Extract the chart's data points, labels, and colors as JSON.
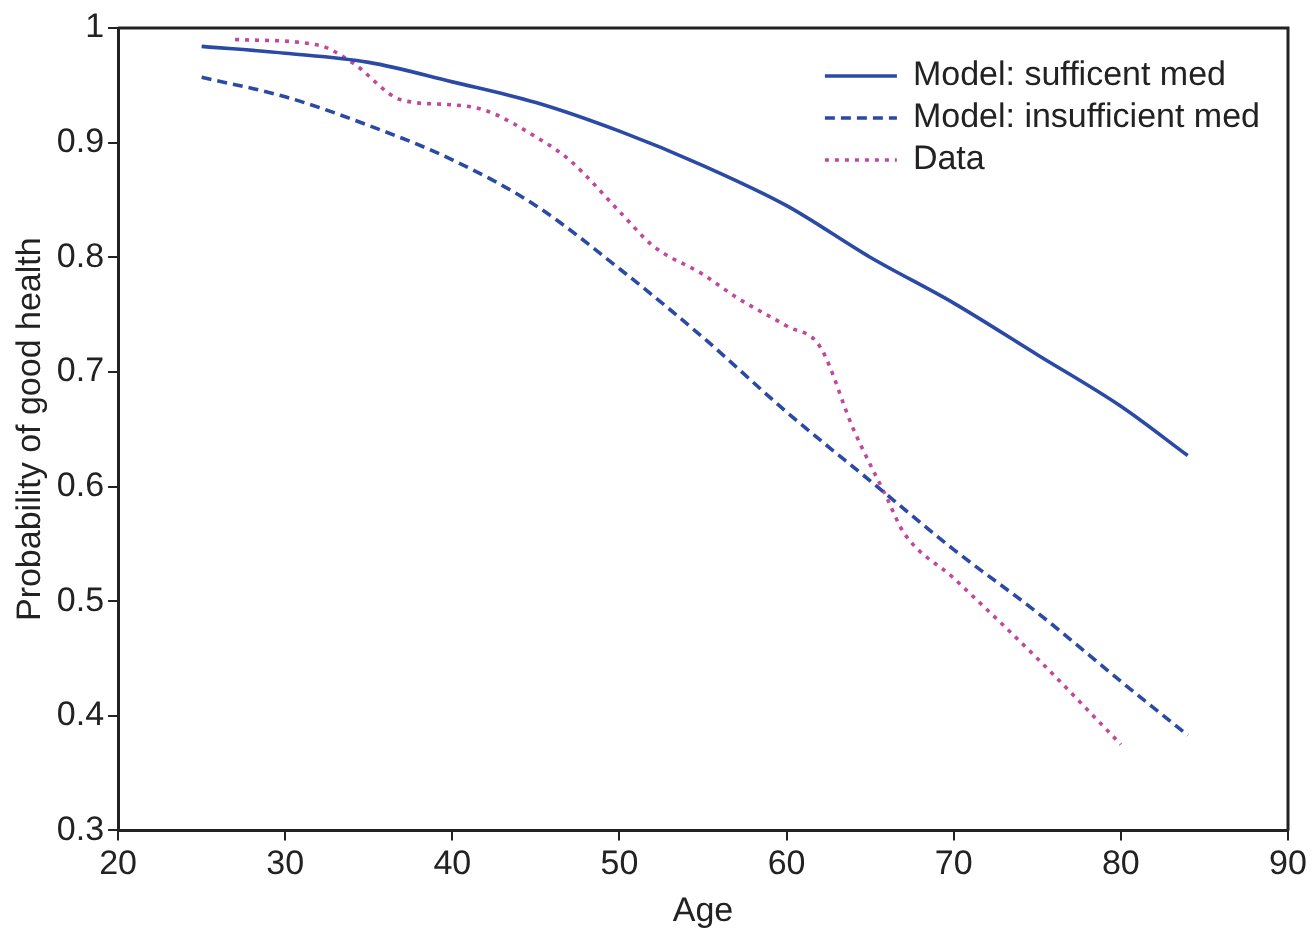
{
  "chart_data": {
    "type": "line",
    "xlabel": "Age",
    "ylabel": "Probability of good health",
    "xlim": [
      20,
      90
    ],
    "xticks": [
      20,
      30,
      40,
      50,
      60,
      70,
      80,
      90
    ],
    "ylim": [
      0.3,
      1
    ],
    "yticks": [
      0.3,
      0.4,
      0.5,
      0.6,
      0.7,
      0.8,
      0.9,
      1
    ],
    "grid": false,
    "legend": "top right",
    "marker": "none",
    "series": [
      {
        "name": "Model: sufficent med",
        "color": "#2b4aa6",
        "line_style": "solid",
        "x": [
          25,
          30,
          35,
          40,
          45,
          50,
          55,
          60,
          65,
          70,
          75,
          80,
          84
        ],
        "values": [
          0.984,
          0.978,
          0.97,
          0.953,
          0.935,
          0.91,
          0.88,
          0.845,
          0.8,
          0.76,
          0.715,
          0.67,
          0.627
        ]
      },
      {
        "name": "Model: insufficient med",
        "color": "#2b4aa6",
        "line_style": "dashed",
        "x": [
          25,
          30,
          35,
          40,
          45,
          50,
          55,
          60,
          65,
          70,
          75,
          80,
          84
        ],
        "values": [
          0.957,
          0.94,
          0.915,
          0.885,
          0.845,
          0.79,
          0.73,
          0.665,
          0.605,
          0.545,
          0.49,
          0.43,
          0.383
        ]
      },
      {
        "name": "Data",
        "color": "#c2489e",
        "line_style": "dotted",
        "x": [
          27,
          32,
          34,
          37,
          40,
          42,
          45,
          47,
          50,
          52,
          55,
          57,
          60,
          62,
          64,
          66,
          67,
          70,
          75,
          80
        ],
        "values": [
          0.99,
          0.985,
          0.97,
          0.937,
          0.933,
          0.928,
          0.905,
          0.885,
          0.84,
          0.81,
          0.785,
          0.765,
          0.74,
          0.722,
          0.65,
          0.59,
          0.56,
          0.52,
          0.45,
          0.375
        ]
      }
    ]
  }
}
